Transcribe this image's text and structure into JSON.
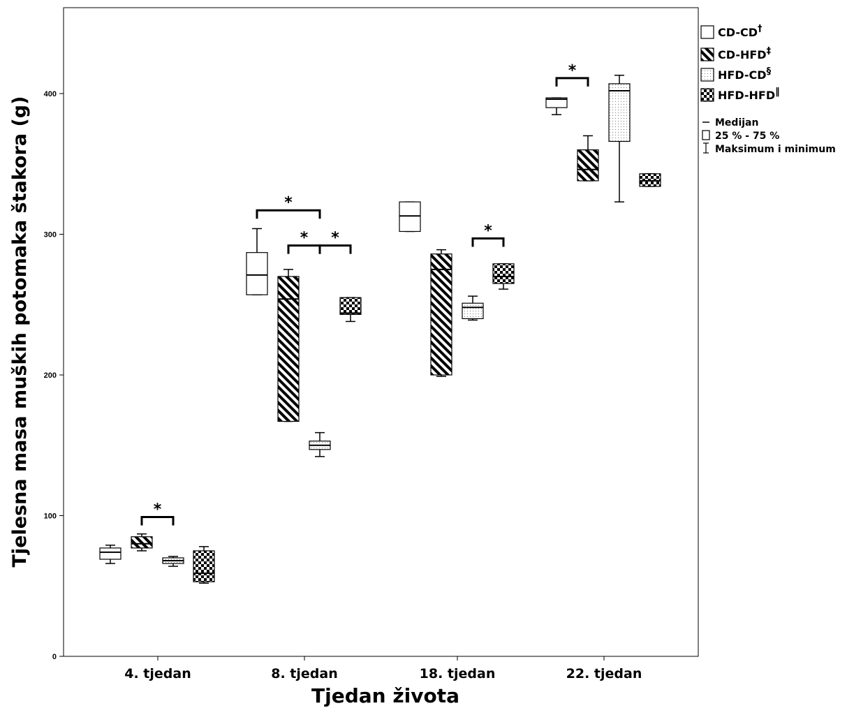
{
  "chart_data": {
    "type": "boxplot",
    "ylabel": "Tjelesna masa muških potomaka štakora (g)",
    "xlabel": "Tjedan života",
    "ylim": [
      0,
      460
    ],
    "yticks": [
      0,
      100,
      200,
      300,
      400
    ],
    "grid": false,
    "legend_position": "right",
    "categories": [
      "4. tjedan",
      "8. tjedan",
      "18. tjedan",
      "22. tjedan"
    ],
    "series": [
      {
        "name": "CD-CD",
        "mark": "†",
        "pattern": "white",
        "boxes": [
          {
            "min": 66,
            "q1": 69,
            "median": 74,
            "q3": 77,
            "max": 79
          },
          {
            "min": 257,
            "q1": 257,
            "median": 271,
            "q3": 287,
            "max": 304
          },
          {
            "min": 302,
            "q1": 302,
            "median": 313,
            "q3": 323,
            "max": 323
          },
          {
            "min": 385,
            "q1": 390,
            "median": 396,
            "q3": 397,
            "max": 397
          }
        ]
      },
      {
        "name": "CD-HFD",
        "mark": "‡",
        "pattern": "diagonal",
        "boxes": [
          {
            "min": 75,
            "q1": 77,
            "median": 80,
            "q3": 85,
            "max": 87
          },
          {
            "min": 167,
            "q1": 167,
            "median": 254,
            "q3": 270,
            "max": 275
          },
          {
            "min": 199,
            "q1": 200,
            "median": 275,
            "q3": 286,
            "max": 289
          },
          {
            "min": 338,
            "q1": 338,
            "median": 346,
            "q3": 360,
            "max": 370
          }
        ]
      },
      {
        "name": "HFD-CD",
        "mark": "§",
        "pattern": "dotted",
        "boxes": [
          {
            "min": 64,
            "q1": 66,
            "median": 68,
            "q3": 70,
            "max": 71
          },
          {
            "min": 142,
            "q1": 147,
            "median": 150,
            "q3": 153,
            "max": 159
          },
          {
            "min": 239,
            "q1": 240,
            "median": 248,
            "q3": 251,
            "max": 256
          },
          {
            "min": 323,
            "q1": 366,
            "median": 402,
            "q3": 407,
            "max": 413
          }
        ]
      },
      {
        "name": "HFD-HFD",
        "mark": "‖",
        "pattern": "checker",
        "boxes": [
          {
            "min": 52,
            "q1": 53,
            "median": 59,
            "q3": 75,
            "max": 78
          },
          {
            "min": 238,
            "q1": 243,
            "median": 244,
            "q3": 255,
            "max": 255
          },
          {
            "min": 261,
            "q1": 265,
            "median": 270,
            "q3": 279,
            "max": 279
          },
          {
            "min": 334,
            "q1": 334,
            "median": 338,
            "q3": 343,
            "max": 343
          }
        ]
      }
    ],
    "significance": [
      {
        "category": 0,
        "from_series": 1,
        "to_series": 2,
        "y": 99,
        "label": "*"
      },
      {
        "category": 1,
        "from_series": 0,
        "to_series": 2,
        "y": 317,
        "label": "*"
      },
      {
        "category": 1,
        "from_series": 1,
        "to_series": 2,
        "y": 292,
        "label": "*"
      },
      {
        "category": 1,
        "from_series": 2,
        "to_series": 3,
        "y": 292,
        "label": "*"
      },
      {
        "category": 2,
        "from_series": 2,
        "to_series": 3,
        "y": 297,
        "label": "*"
      },
      {
        "category": 3,
        "from_series": 0,
        "to_series": 1,
        "y": 411,
        "label": "*"
      }
    ],
    "legend_extra": {
      "median": "Medijan",
      "iqr": "25 % - 75 %",
      "whiskers": "Maksimum i minimum"
    }
  }
}
